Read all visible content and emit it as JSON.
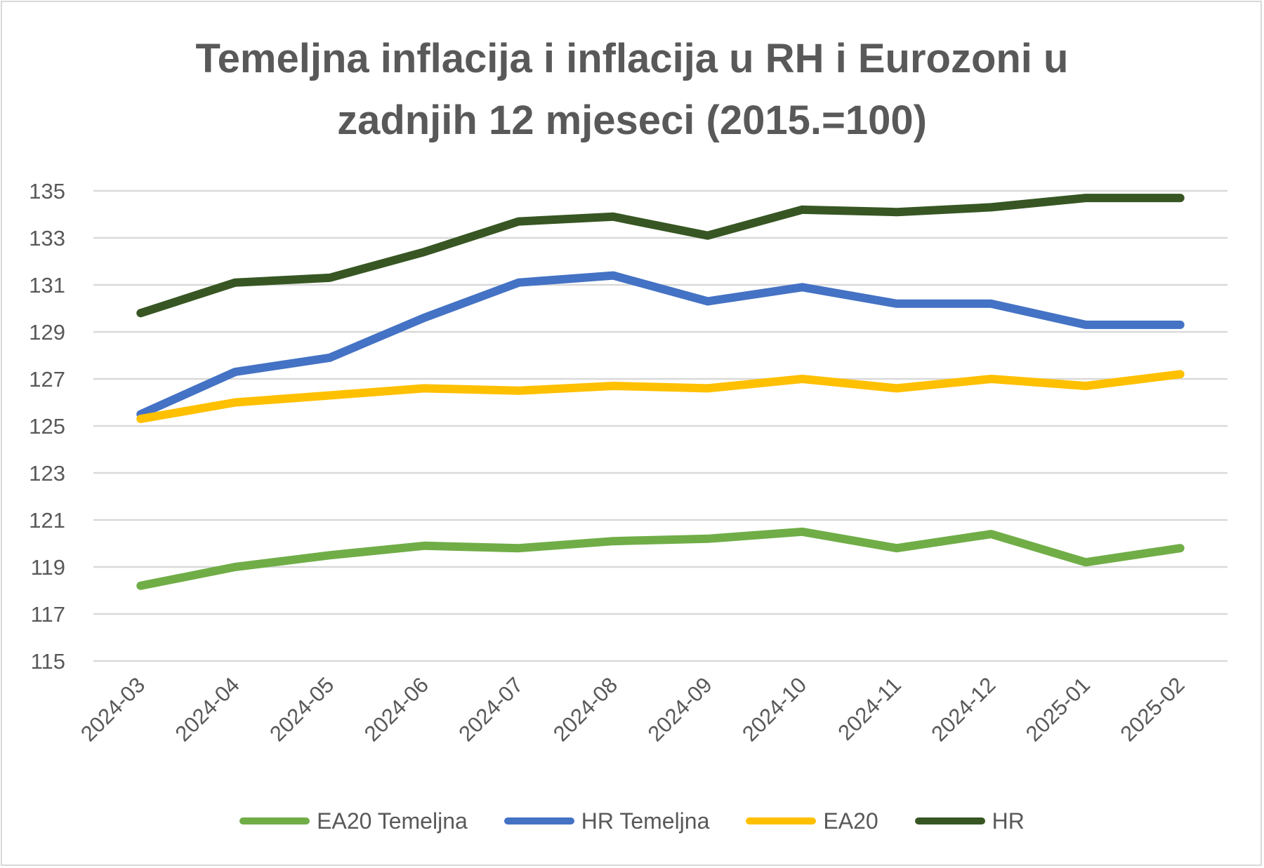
{
  "chart_data": {
    "type": "line",
    "title": "Temeljna inflacija i inflacija u RH i Eurozoni u zadnjih 12 mjeseci (2015.=100)",
    "title_lines": [
      "Temeljna inflacija i inflacija u RH i Eurozoni u",
      "zadnjih 12 mjeseci (2015.=100)"
    ],
    "categories": [
      "2024-03",
      "2024-04",
      "2024-05",
      "2024-06",
      "2024-07",
      "2024-08",
      "2024-09",
      "2024-10",
      "2024-11",
      "2024-12",
      "2025-01",
      "2025-02"
    ],
    "ylim": [
      115,
      135
    ],
    "yticks": [
      "115",
      "117",
      "119",
      "121",
      "123",
      "125",
      "127",
      "129",
      "131",
      "133",
      "135"
    ],
    "grid": true,
    "legend_position": "bottom",
    "series": [
      {
        "name": "EA20 Temeljna",
        "color": "#70ad47",
        "values": [
          118.2,
          119.0,
          119.5,
          119.9,
          119.8,
          120.1,
          120.2,
          120.5,
          119.8,
          120.4,
          119.2,
          119.8
        ]
      },
      {
        "name": "HR Temeljna",
        "color": "#4472c4",
        "values": [
          125.5,
          127.3,
          127.9,
          129.6,
          131.1,
          131.4,
          130.3,
          130.9,
          130.2,
          130.2,
          129.3,
          129.3
        ]
      },
      {
        "name": "EA20",
        "color": "#ffc000",
        "values": [
          125.3,
          126.0,
          126.3,
          126.6,
          126.5,
          126.7,
          126.6,
          127.0,
          126.6,
          127.0,
          126.7,
          127.2
        ]
      },
      {
        "name": "HR",
        "color": "#375623",
        "values": [
          129.8,
          131.1,
          131.3,
          132.4,
          133.7,
          133.9,
          133.1,
          134.2,
          134.1,
          134.3,
          134.7,
          134.7
        ]
      }
    ]
  }
}
